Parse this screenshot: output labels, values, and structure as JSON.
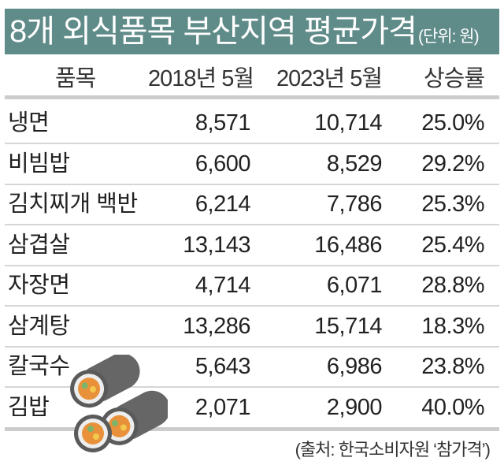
{
  "title": "8개 외식품목 부산지역 평균가격",
  "unit": "(단위: 원)",
  "source": "(출처: 한국소비자원 ‘참가격’)",
  "colors": {
    "title_bg": "#5f8b89"
  },
  "chart_data": {
    "type": "table",
    "title": "8개 외식품목 부산지역 평균가격",
    "columns": [
      "품목",
      "2018년 5월",
      "2023년 5월",
      "상승률"
    ],
    "rows": [
      [
        "냉면",
        "8,571",
        "10,714",
        "25.0%"
      ],
      [
        "비빔밥",
        "6,600",
        "8,529",
        "29.2%"
      ],
      [
        "김치찌개 백반",
        "6,214",
        "7,786",
        "25.3%"
      ],
      [
        "삼겹살",
        "13,143",
        "16,486",
        "25.4%"
      ],
      [
        "자장면",
        "4,714",
        "6,071",
        "28.8%"
      ],
      [
        "삼계탕",
        "13,286",
        "15,714",
        "18.3%"
      ],
      [
        "칼국수",
        "5,643",
        "6,986",
        "23.8%"
      ],
      [
        "김밥",
        "2,071",
        "2,900",
        "40.0%"
      ]
    ]
  }
}
